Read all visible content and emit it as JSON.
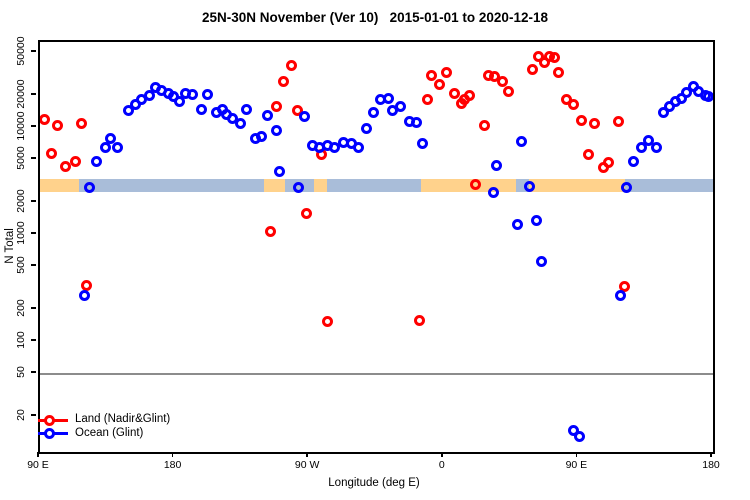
{
  "title": "25N-30N November (Ver 10)   2015-01-01 to 2020-12-18",
  "colors": {
    "land_series": "#FF0000",
    "ocean_series": "#0000FF",
    "band_land": "#FFD28C",
    "band_ocean": "#A9BDD9",
    "reference_line": "#8C8C8C",
    "axis": "#000000"
  },
  "legend": {
    "land_label": "Land (Nadir&Glint)",
    "ocean_label": "Ocean (Glint)"
  },
  "chart_data": {
    "type": "scatter",
    "title": "25N-30N November (Ver 10)   2015-01-01 to 2020-12-18",
    "xlabel": "Longitude (deg E)",
    "ylabel": "N Total",
    "y_scale": "log10",
    "xlim": [
      90,
      540
    ],
    "x_unit": "deg E, extended eastward 90..540 (wraps through 180 and 0)",
    "x_ticks": [
      {
        "lon": 90,
        "label": "90 E"
      },
      {
        "lon": 180,
        "label": "180"
      },
      {
        "lon": 270,
        "label": "90 W"
      },
      {
        "lon": 360,
        "label": "0"
      },
      {
        "lon": 450,
        "label": "90 E"
      },
      {
        "lon": 540,
        "label": "180"
      }
    ],
    "y_ticks": [
      20,
      50,
      100,
      200,
      500,
      1000,
      2000,
      5000,
      10000,
      20000,
      50000
    ],
    "reference_line_y": 50,
    "surface_band": {
      "value_range": [
        2520,
        3340
      ],
      "segments": [
        {
          "from": 90,
          "to": 116,
          "surface": "land"
        },
        {
          "from": 116,
          "to": 240,
          "surface": "ocean"
        },
        {
          "from": 240,
          "to": 254,
          "surface": "land"
        },
        {
          "from": 254,
          "to": 273,
          "surface": "ocean"
        },
        {
          "from": 273,
          "to": 282,
          "surface": "land"
        },
        {
          "from": 282,
          "to": 345,
          "surface": "ocean"
        },
        {
          "from": 345,
          "to": 408,
          "surface": "land"
        },
        {
          "from": 408,
          "to": 417,
          "surface": "ocean"
        },
        {
          "from": 417,
          "to": 481,
          "surface": "land"
        },
        {
          "from": 481,
          "to": 540,
          "surface": "ocean"
        }
      ]
    },
    "series": [
      {
        "name": "Land (Nadir&Glint)",
        "color": "#FF0000",
        "points": [
          [
            93,
            12000
          ],
          [
            98,
            5800
          ],
          [
            102,
            10500
          ],
          [
            107,
            4400
          ],
          [
            114,
            4900
          ],
          [
            118,
            11000
          ],
          [
            121,
            340
          ],
          [
            244,
            1070
          ],
          [
            248,
            16000
          ],
          [
            253,
            27000
          ],
          [
            258,
            38000
          ],
          [
            262,
            14500
          ],
          [
            268,
            1600
          ],
          [
            278,
            5600
          ],
          [
            282,
            155
          ],
          [
            344,
            160
          ],
          [
            349,
            18500
          ],
          [
            352,
            31000
          ],
          [
            357,
            25500
          ],
          [
            362,
            33000
          ],
          [
            367,
            21000
          ],
          [
            372,
            17000
          ],
          [
            374,
            18500
          ],
          [
            377,
            20000
          ],
          [
            381,
            2950
          ],
          [
            387,
            10500
          ],
          [
            390,
            31000
          ],
          [
            394,
            30000
          ],
          [
            399,
            27000
          ],
          [
            403,
            22000
          ],
          [
            419,
            35000
          ],
          [
            423,
            46500
          ],
          [
            427,
            41000
          ],
          [
            431,
            46500
          ],
          [
            434,
            45500
          ],
          [
            437,
            33000
          ],
          [
            442,
            18500
          ],
          [
            447,
            16500
          ],
          [
            452,
            11800
          ],
          [
            457,
            5600
          ],
          [
            461,
            11000
          ],
          [
            467,
            4300
          ],
          [
            470,
            4800
          ],
          [
            477,
            11400
          ],
          [
            481,
            330
          ]
        ]
      },
      {
        "name": "Ocean (Glint)",
        "color": "#0000FF",
        "points": [
          [
            120,
            270
          ],
          [
            123,
            2800
          ],
          [
            128,
            4900
          ],
          [
            134,
            6600
          ],
          [
            137,
            8000
          ],
          [
            142,
            6600
          ],
          [
            149,
            14500
          ],
          [
            154,
            16500
          ],
          [
            158,
            18500
          ],
          [
            163,
            20000
          ],
          [
            167,
            24000
          ],
          [
            171,
            22500
          ],
          [
            176,
            21000
          ],
          [
            179,
            19500
          ],
          [
            183,
            17500
          ],
          [
            187,
            21000
          ],
          [
            192,
            20500
          ],
          [
            198,
            15000
          ],
          [
            202,
            20500
          ],
          [
            208,
            14000
          ],
          [
            212,
            15000
          ],
          [
            215,
            13500
          ],
          [
            219,
            12400
          ],
          [
            224,
            11000
          ],
          [
            228,
            15000
          ],
          [
            234,
            8000
          ],
          [
            238,
            8300
          ],
          [
            242,
            13000
          ],
          [
            248,
            9400
          ],
          [
            250,
            3900
          ],
          [
            263,
            2770
          ],
          [
            267,
            12700
          ],
          [
            272,
            6800
          ],
          [
            277,
            6600
          ],
          [
            282,
            6800
          ],
          [
            287,
            6600
          ],
          [
            293,
            7300
          ],
          [
            298,
            7200
          ],
          [
            303,
            6600
          ],
          [
            308,
            9800
          ],
          [
            313,
            14000
          ],
          [
            318,
            18500
          ],
          [
            323,
            19000
          ],
          [
            326,
            14500
          ],
          [
            331,
            16000
          ],
          [
            337,
            11400
          ],
          [
            342,
            11200
          ],
          [
            346,
            7200
          ],
          [
            393,
            2500
          ],
          [
            395,
            4500
          ],
          [
            409,
            1260
          ],
          [
            412,
            7500
          ],
          [
            417,
            2870
          ],
          [
            422,
            1370
          ],
          [
            425,
            570
          ],
          [
            447,
            15
          ],
          [
            451,
            13
          ],
          [
            478,
            270
          ],
          [
            482,
            2770
          ],
          [
            487,
            4900
          ],
          [
            492,
            6600
          ],
          [
            497,
            7700
          ],
          [
            502,
            6600
          ],
          [
            507,
            14000
          ],
          [
            511,
            16000
          ],
          [
            515,
            17500
          ],
          [
            519,
            19000
          ],
          [
            522,
            21500
          ],
          [
            527,
            24500
          ],
          [
            530,
            22000
          ],
          [
            535,
            20000
          ],
          [
            537,
            19500
          ]
        ]
      }
    ]
  }
}
